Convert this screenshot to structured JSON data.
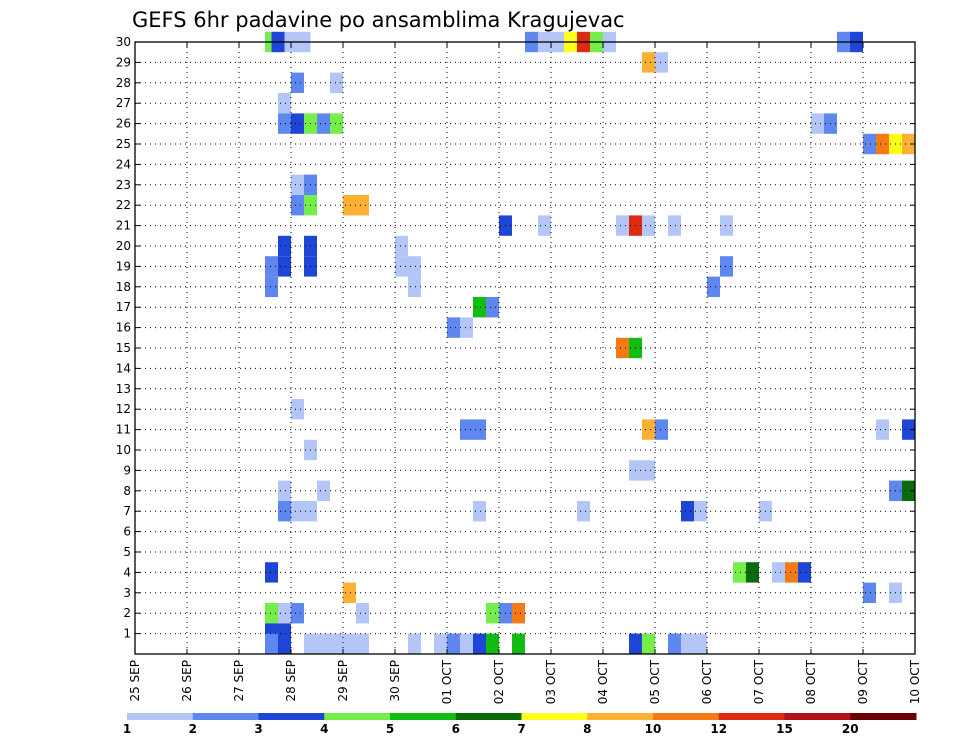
{
  "chart_data": {
    "type": "heatmap",
    "title": "GEFS 6hr padavine po ansamblima Kragujevac",
    "xlabel": "",
    "ylabel": "",
    "x_ticks": [
      "25 SEP",
      "26 SEP",
      "27 SEP",
      "28 SEP",
      "29 SEP",
      "30 SEP",
      "01 OCT",
      "02 OCT",
      "03 OCT",
      "04 OCT",
      "05 OCT",
      "06 OCT",
      "07 OCT",
      "08 OCT",
      "09 OCT",
      "10 OCT"
    ],
    "y_ticks": [
      "1",
      "2",
      "3",
      "4",
      "5",
      "6",
      "7",
      "8",
      "9",
      "10",
      "11",
      "12",
      "13",
      "14",
      "15",
      "16",
      "17",
      "18",
      "19",
      "20",
      "21",
      "22",
      "23",
      "24",
      "25",
      "26",
      "27",
      "28",
      "29",
      "30"
    ],
    "xlim": [
      0,
      60
    ],
    "ylim": [
      0,
      30
    ],
    "time_step": "6hr",
    "colorbar": {
      "labels": [
        "1",
        "2",
        "3",
        "4",
        "5",
        "6",
        "7",
        "8",
        "10",
        "12",
        "15",
        "20"
      ],
      "colors": [
        "#b3c6f7",
        "#5e87ef",
        "#1e46d6",
        "#76ee4a",
        "#12bd12",
        "#0b6a0b",
        "#ffff1a",
        "#fcb034",
        "#f47a16",
        "#dd2b12",
        "#b2121a",
        "#6b0000"
      ]
    },
    "cells": [
      {
        "step": 10.5,
        "member": 30,
        "level": 3
      },
      {
        "step": 11,
        "member": 30,
        "level": 2
      },
      {
        "step": 12,
        "member": 30,
        "level": 0
      },
      {
        "step": 13,
        "member": 30,
        "level": 0
      },
      {
        "step": 30.5,
        "member": 30,
        "level": 1
      },
      {
        "step": 31.5,
        "member": 30,
        "level": 0
      },
      {
        "step": 32.5,
        "member": 30,
        "level": 0
      },
      {
        "step": 33.5,
        "member": 30,
        "level": 6
      },
      {
        "step": 34.5,
        "member": 30,
        "level": 9
      },
      {
        "step": 35.5,
        "member": 30,
        "level": 3
      },
      {
        "step": 36.5,
        "member": 30,
        "level": 0
      },
      {
        "step": 54.5,
        "member": 30,
        "level": 1
      },
      {
        "step": 55.5,
        "member": 30,
        "level": 2
      },
      {
        "step": 39.5,
        "member": 29,
        "level": 7
      },
      {
        "step": 40.5,
        "member": 29,
        "level": 0
      },
      {
        "step": 12.5,
        "member": 28,
        "level": 1
      },
      {
        "step": 15.5,
        "member": 28,
        "level": 0
      },
      {
        "step": 11.5,
        "member": 27,
        "level": 0
      },
      {
        "step": 11.5,
        "member": 26,
        "level": 1
      },
      {
        "step": 12.5,
        "member": 26,
        "level": 2
      },
      {
        "step": 13.5,
        "member": 26,
        "level": 3
      },
      {
        "step": 14.5,
        "member": 26,
        "level": 1
      },
      {
        "step": 15.5,
        "member": 26,
        "level": 3
      },
      {
        "step": 52.5,
        "member": 26,
        "level": 0
      },
      {
        "step": 53.5,
        "member": 26,
        "level": 1
      },
      {
        "step": 56.5,
        "member": 25,
        "level": 1
      },
      {
        "step": 57.5,
        "member": 25,
        "level": 8
      },
      {
        "step": 58.5,
        "member": 25,
        "level": 6
      },
      {
        "step": 59.5,
        "member": 25,
        "level": 7
      },
      {
        "step": 12.5,
        "member": 23,
        "level": 0
      },
      {
        "step": 13.5,
        "member": 23,
        "level": 1
      },
      {
        "step": 12.5,
        "member": 22,
        "level": 1
      },
      {
        "step": 13.5,
        "member": 22,
        "level": 3
      },
      {
        "step": 16.5,
        "member": 22,
        "level": 7
      },
      {
        "step": 17.5,
        "member": 22,
        "level": 7
      },
      {
        "step": 28.5,
        "member": 21,
        "level": 2
      },
      {
        "step": 31.5,
        "member": 21,
        "level": 0
      },
      {
        "step": 37.5,
        "member": 21,
        "level": 0
      },
      {
        "step": 38.5,
        "member": 21,
        "level": 9
      },
      {
        "step": 39.5,
        "member": 21,
        "level": 0
      },
      {
        "step": 41.5,
        "member": 21,
        "level": 0
      },
      {
        "step": 45.5,
        "member": 21,
        "level": 0
      },
      {
        "step": 11.5,
        "member": 20,
        "level": 2
      },
      {
        "step": 13.5,
        "member": 20,
        "level": 2
      },
      {
        "step": 20.5,
        "member": 20,
        "level": 0
      },
      {
        "step": 10.5,
        "member": 19,
        "level": 1
      },
      {
        "step": 11.5,
        "member": 19,
        "level": 2
      },
      {
        "step": 13.5,
        "member": 19,
        "level": 2
      },
      {
        "step": 20.5,
        "member": 19,
        "level": 0
      },
      {
        "step": 21.5,
        "member": 19,
        "level": 0
      },
      {
        "step": 45.5,
        "member": 19,
        "level": 1
      },
      {
        "step": 10.5,
        "member": 18,
        "level": 1
      },
      {
        "step": 21.5,
        "member": 18,
        "level": 0
      },
      {
        "step": 44.5,
        "member": 18,
        "level": 1
      },
      {
        "step": 26.5,
        "member": 17,
        "level": 4
      },
      {
        "step": 27.5,
        "member": 17,
        "level": 1
      },
      {
        "step": 24.5,
        "member": 16,
        "level": 1
      },
      {
        "step": 25.5,
        "member": 16,
        "level": 0
      },
      {
        "step": 37.5,
        "member": 15,
        "level": 8
      },
      {
        "step": 38.5,
        "member": 15,
        "level": 4
      },
      {
        "step": 12.5,
        "member": 12,
        "level": 0
      },
      {
        "step": 25.5,
        "member": 11,
        "level": 1
      },
      {
        "step": 26.5,
        "member": 11,
        "level": 1
      },
      {
        "step": 39.5,
        "member": 11,
        "level": 7
      },
      {
        "step": 40.5,
        "member": 11,
        "level": 1
      },
      {
        "step": 57.5,
        "member": 11,
        "level": 0
      },
      {
        "step": 59.5,
        "member": 11,
        "level": 2
      },
      {
        "step": 13.5,
        "member": 10,
        "level": 0
      },
      {
        "step": 38.5,
        "member": 9,
        "level": 0
      },
      {
        "step": 39.5,
        "member": 9,
        "level": 0
      },
      {
        "step": 11.5,
        "member": 8,
        "level": 0
      },
      {
        "step": 14.5,
        "member": 8,
        "level": 0
      },
      {
        "step": 58.5,
        "member": 8,
        "level": 1
      },
      {
        "step": 59.5,
        "member": 8,
        "level": 5
      },
      {
        "step": 11.5,
        "member": 7,
        "level": 1
      },
      {
        "step": 12.5,
        "member": 7,
        "level": 0
      },
      {
        "step": 13.5,
        "member": 7,
        "level": 0
      },
      {
        "step": 26.5,
        "member": 7,
        "level": 0
      },
      {
        "step": 34.5,
        "member": 7,
        "level": 0
      },
      {
        "step": 42.5,
        "member": 7,
        "level": 2
      },
      {
        "step": 43.5,
        "member": 7,
        "level": 0
      },
      {
        "step": 48.5,
        "member": 7,
        "level": 0
      },
      {
        "step": 10.5,
        "member": 4,
        "level": 2
      },
      {
        "step": 46.5,
        "member": 4,
        "level": 3
      },
      {
        "step": 47.5,
        "member": 4,
        "level": 5
      },
      {
        "step": 49.5,
        "member": 4,
        "level": 0
      },
      {
        "step": 50.5,
        "member": 4,
        "level": 8
      },
      {
        "step": 51.5,
        "member": 4,
        "level": 2
      },
      {
        "step": 16.5,
        "member": 3,
        "level": 7
      },
      {
        "step": 56.5,
        "member": 3,
        "level": 1
      },
      {
        "step": 58.5,
        "member": 3,
        "level": 0
      },
      {
        "step": 10.5,
        "member": 2,
        "level": 3
      },
      {
        "step": 11.5,
        "member": 2,
        "level": 0
      },
      {
        "step": 12.5,
        "member": 2,
        "level": 1
      },
      {
        "step": 17.5,
        "member": 2,
        "level": 0
      },
      {
        "step": 27.5,
        "member": 2,
        "level": 3
      },
      {
        "step": 28.5,
        "member": 2,
        "level": 1
      },
      {
        "step": 29.5,
        "member": 2,
        "level": 8
      },
      {
        "step": 10.5,
        "member": 1,
        "level": 2
      },
      {
        "step": 11.5,
        "member": 1,
        "level": 2
      },
      {
        "step": 10.5,
        "member": 0.5,
        "level": 1
      },
      {
        "step": 11.5,
        "member": 0.5,
        "level": 2
      },
      {
        "step": 13.5,
        "member": 0.5,
        "level": 0
      },
      {
        "step": 14.5,
        "member": 0.5,
        "level": 0
      },
      {
        "step": 15.5,
        "member": 0.5,
        "level": 0
      },
      {
        "step": 16.5,
        "member": 0.5,
        "level": 0
      },
      {
        "step": 17.5,
        "member": 0.5,
        "level": 0
      },
      {
        "step": 21.5,
        "member": 0.5,
        "level": 0
      },
      {
        "step": 23.5,
        "member": 0.5,
        "level": 0
      },
      {
        "step": 24.5,
        "member": 0.5,
        "level": 1
      },
      {
        "step": 25.5,
        "member": 0.5,
        "level": 0
      },
      {
        "step": 26.5,
        "member": 0.5,
        "level": 2
      },
      {
        "step": 27.5,
        "member": 0.5,
        "level": 4
      },
      {
        "step": 29.5,
        "member": 0.5,
        "level": 4
      },
      {
        "step": 38.5,
        "member": 0.5,
        "level": 2
      },
      {
        "step": 39.5,
        "member": 0.5,
        "level": 3
      },
      {
        "step": 41.5,
        "member": 0.5,
        "level": 1
      },
      {
        "step": 42.5,
        "member": 0.5,
        "level": 0
      },
      {
        "step": 43.5,
        "member": 0.5,
        "level": 0
      }
    ]
  }
}
